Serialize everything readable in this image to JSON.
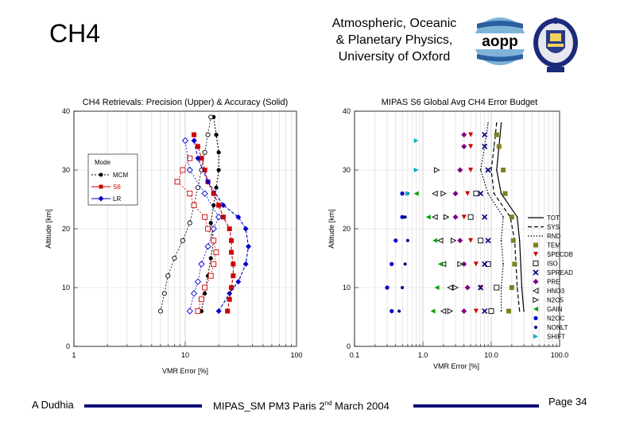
{
  "header": {
    "title": "CH4",
    "institution_lines": [
      "Atmospheric, Oceanic",
      "& Planetary Physics,",
      "University of Oxford"
    ],
    "logo_text": "aopp"
  },
  "footer": {
    "author": "A Dudhia",
    "event_prefix": "MIPAS_SM PM3 Paris 2",
    "event_sup": "nd",
    "event_suffix": " March 2004",
    "page": "Page 34"
  },
  "colors": {
    "mcm": "#000000",
    "s6": "#cc0000",
    "lr": "#0000cc",
    "accent": "#0a0a78"
  },
  "chart_data": [
    {
      "type": "line",
      "title": "CH4 Retrievals: Precision (Upper) & Accuracy (Solid)",
      "xlabel": "VMR Error [%]",
      "ylabel": "Altitude [km]",
      "xscale": "log",
      "xlim": [
        1,
        100
      ],
      "ylim": [
        0,
        40
      ],
      "xticks": [
        "1",
        "10",
        "100"
      ],
      "yticks": [
        "0",
        "10",
        "20",
        "30",
        "40"
      ],
      "legend_title": "Mode",
      "legend_position": "upper-left",
      "series": [
        {
          "name": "MCM",
          "color": "#000000",
          "kind": "accuracy",
          "alt": [
            6,
            9,
            12,
            15,
            18,
            21,
            24,
            27,
            30,
            33,
            36,
            39
          ],
          "values": [
            14,
            15,
            16,
            17,
            18,
            17,
            18,
            19,
            20,
            20,
            19,
            18
          ]
        },
        {
          "name": "MCM",
          "color": "#000000",
          "kind": "precision",
          "alt": [
            6,
            9,
            12,
            15,
            18,
            21,
            24,
            27,
            30,
            33,
            36,
            39
          ],
          "values": [
            6,
            6.5,
            7,
            8,
            9.5,
            11,
            12,
            13,
            14,
            15,
            16,
            17
          ]
        },
        {
          "name": "S6",
          "color": "#cc0000",
          "kind": "accuracy",
          "alt": [
            6,
            8,
            10,
            12,
            14,
            16,
            18,
            20,
            22,
            24,
            26,
            28,
            30,
            32,
            34,
            36
          ],
          "values": [
            24,
            25,
            26,
            27,
            27,
            26,
            26,
            25,
            22,
            20,
            18,
            16,
            15,
            14,
            13,
            12
          ]
        },
        {
          "name": "S6",
          "color": "#cc0000",
          "kind": "precision",
          "alt": [
            6,
            8,
            10,
            12,
            14,
            16,
            18,
            20,
            22,
            24,
            26,
            28,
            30,
            32
          ],
          "values": [
            13,
            14,
            15,
            17,
            18,
            19,
            18,
            16,
            15,
            12,
            11,
            8.5,
            9.5,
            11
          ]
        },
        {
          "name": "LR",
          "color": "#0000cc",
          "kind": "accuracy",
          "alt": [
            6,
            9,
            11,
            14,
            17,
            20,
            22,
            24,
            28,
            32,
            35
          ],
          "values": [
            20,
            25,
            30,
            35,
            37,
            35,
            30,
            22,
            16,
            13,
            12
          ]
        },
        {
          "name": "LR",
          "color": "#0000cc",
          "kind": "precision",
          "alt": [
            6,
            9,
            11,
            14,
            17,
            20,
            22,
            26,
            30,
            35
          ],
          "values": [
            11,
            12,
            13,
            14,
            16,
            18,
            20,
            15,
            11,
            10
          ]
        }
      ]
    },
    {
      "type": "scatter",
      "title": "MIPAS S6 Global Avg CH4 Error Budget",
      "xlabel": "VMR Error [%]",
      "ylabel": "Altitude [km]",
      "xscale": "log",
      "xlim": [
        0.1,
        100
      ],
      "ylim": [
        0,
        40
      ],
      "xticks": [
        "0.1",
        "1.0",
        "10.0",
        "100.0"
      ],
      "yticks": [
        "0",
        "10",
        "20",
        "30",
        "40"
      ],
      "legend": [
        "TOT",
        "SYS",
        "RND",
        "TEM",
        "SPECDB",
        "ISO",
        "SPREAD",
        "PRE",
        "HNO3",
        "N2O5",
        "GAIN",
        "N2OC",
        "NONLT",
        "SHIFT"
      ],
      "series": [
        {
          "name": "TOT",
          "color": "#000000",
          "style": "line",
          "alt": [
            6,
            10,
            14,
            18,
            22,
            26,
            30,
            34,
            38
          ],
          "values": [
            30,
            28,
            27,
            26,
            24,
            14,
            12,
            13,
            14
          ]
        },
        {
          "name": "SYS",
          "color": "#000000",
          "style": "dashed",
          "alt": [
            6,
            10,
            14,
            18,
            22,
            26,
            30,
            34,
            38
          ],
          "values": [
            26,
            24,
            23,
            22,
            19,
            11,
            10,
            11,
            12
          ]
        },
        {
          "name": "RND",
          "color": "#000000",
          "style": "dotted",
          "alt": [
            6,
            10,
            14,
            18,
            22,
            26,
            30,
            34,
            38
          ],
          "values": [
            14,
            14,
            15,
            14,
            15,
            9,
            7,
            8,
            9
          ]
        },
        {
          "name": "TEM",
          "color": "#808020",
          "style": "square",
          "alt": [
            6,
            10,
            14,
            18,
            22,
            26,
            30,
            34,
            36
          ],
          "values": [
            18,
            20,
            22,
            21,
            20,
            16,
            15,
            13,
            12
          ]
        },
        {
          "name": "SPECDB",
          "color": "#cc0000",
          "style": "triangle-down",
          "alt": [
            6,
            10,
            14,
            18,
            22,
            26,
            30,
            34,
            36
          ],
          "values": [
            6,
            7,
            6,
            5,
            4,
            4.5,
            5,
            5,
            5
          ]
        },
        {
          "name": "ISO",
          "color": "#000000",
          "style": "square-open",
          "alt": [
            6,
            10,
            14,
            18,
            22,
            26
          ],
          "values": [
            10,
            12,
            9,
            7,
            5,
            6
          ]
        },
        {
          "name": "SPREAD",
          "color": "#000080",
          "style": "x",
          "alt": [
            6,
            10,
            14,
            18,
            22,
            26,
            30,
            34,
            36
          ],
          "values": [
            8,
            7,
            8,
            9,
            8,
            7,
            9,
            8,
            8
          ]
        },
        {
          "name": "PRE",
          "color": "#800080",
          "style": "diamond",
          "alt": [
            6,
            10,
            14,
            18,
            22,
            26,
            30,
            34,
            36
          ],
          "values": [
            4,
            4.5,
            4,
            3.5,
            3,
            3,
            3.5,
            4,
            4
          ]
        },
        {
          "name": "HNO3",
          "color": "#000000",
          "style": "triangle-left-open",
          "alt": [
            6,
            10,
            14,
            18,
            22,
            26
          ],
          "values": [
            2,
            2.5,
            2,
            1.8,
            1.5,
            1.5
          ]
        },
        {
          "name": "N2O5",
          "color": "#000000",
          "style": "triangle-right-open",
          "alt": [
            6,
            10,
            14,
            18,
            22,
            26,
            30
          ],
          "values": [
            2.5,
            3,
            3.5,
            2.8,
            2.2,
            2,
            1.6
          ]
        },
        {
          "name": "GAIN",
          "color": "#00a000",
          "style": "triangle-left",
          "alt": [
            6,
            10,
            14,
            18,
            22,
            26
          ],
          "values": [
            1.4,
            1.6,
            1.8,
            1.5,
            1.2,
            0.8
          ]
        },
        {
          "name": "N2OC",
          "color": "#0000cc",
          "style": "circle",
          "alt": [
            6,
            10,
            14,
            18,
            22,
            26
          ],
          "values": [
            0.35,
            0.3,
            0.35,
            0.4,
            0.5,
            0.5
          ]
        },
        {
          "name": "NONLT",
          "color": "#000080",
          "style": "circle-small",
          "alt": [
            6,
            10,
            14,
            18,
            22,
            26
          ],
          "values": [
            0.45,
            0.5,
            0.55,
            0.6,
            0.55,
            0.6
          ]
        },
        {
          "name": "SHIFT",
          "color": "#00b0c0",
          "style": "triangle-right",
          "alt": [
            26,
            30,
            35
          ],
          "values": [
            0.6,
            0.8,
            0.8
          ]
        }
      ]
    }
  ]
}
